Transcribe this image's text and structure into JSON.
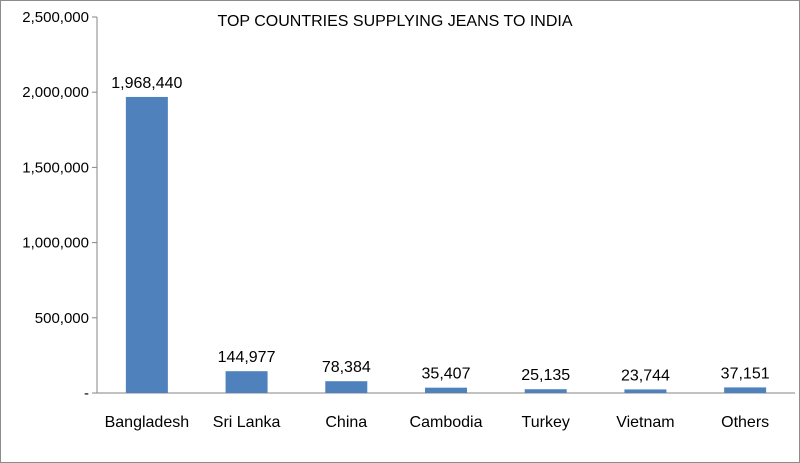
{
  "chart_data": {
    "type": "bar",
    "title": "TOP COUNTRIES SUPPLYING JEANS TO INDIA",
    "categories": [
      "Bangladesh",
      "Sri Lanka",
      "China",
      "Cambodia",
      "Turkey",
      "Vietnam",
      "Others"
    ],
    "values": [
      1968440,
      144977,
      78384,
      35407,
      25135,
      23744,
      37151
    ],
    "data_labels": [
      "1,968,440",
      "144,977",
      "78,384",
      "35,407",
      "25,135",
      "23,744",
      "37,151"
    ],
    "ylim": [
      0,
      2500000
    ],
    "yticks": [
      0,
      500000,
      1000000,
      1500000,
      2000000,
      2500000
    ],
    "ytick_labels": [
      "-",
      "500,000",
      "1,000,000",
      "1,500,000",
      "2,000,000",
      "2,500,000"
    ],
    "bar_color": "#4f81bd",
    "axis_color": "#868686",
    "grid": false,
    "legend": "none"
  }
}
